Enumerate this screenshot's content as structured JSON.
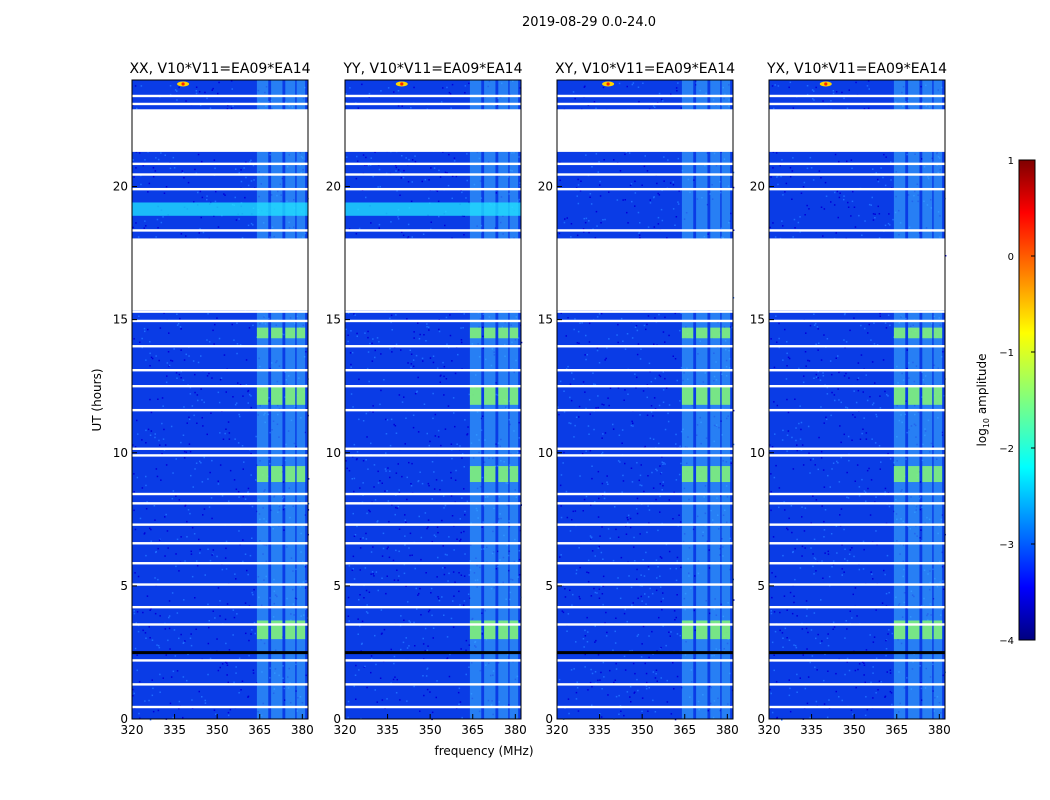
{
  "chart_data": {
    "type": "heatmap",
    "suptitle": "2019-08-29 0.0-24.0",
    "xlabel": "frequency (MHz)",
    "ylabel": "UT (hours)",
    "xlim": [
      320,
      382
    ],
    "ylim": [
      0,
      24
    ],
    "xticks": [
      320,
      335,
      350,
      365,
      380
    ],
    "yticks": [
      0,
      5,
      10,
      15,
      20
    ],
    "colorbar": {
      "label": "log10 amplitude",
      "label_main": "log",
      "label_sub": "10",
      "label_rest": " amplitude",
      "range": [
        -4,
        1
      ],
      "ticks": [
        1,
        0,
        -1,
        -2,
        -3,
        -4
      ],
      "colormap": "jet",
      "colors": [
        "#00007f",
        "#0000ff",
        "#007fff",
        "#00ffff",
        "#7fff7f",
        "#ffff00",
        "#ff7f00",
        "#ff0000",
        "#7f0000"
      ]
    },
    "panels": [
      {
        "title": "XX, V10*V11=EA09*EA14",
        "gaps_ut": [
          [
            21.3,
            22.9
          ],
          [
            18.05,
            15.35
          ]
        ]
      },
      {
        "title": "YY, V10*V11=EA09*EA14",
        "gaps_ut": [
          [
            21.3,
            22.9
          ],
          [
            18.05,
            15.35
          ]
        ]
      },
      {
        "title": "XY, V10*V11=EA09*EA14",
        "gaps_ut": [
          [
            21.3,
            22.9
          ],
          [
            18.05,
            15.35
          ]
        ]
      },
      {
        "title": "YX, V10*V11=EA09*EA14",
        "gaps_ut": [
          [
            21.3,
            22.9
          ],
          [
            18.05,
            15.35
          ]
        ]
      }
    ],
    "rfi_bands_mhz": [
      [
        364,
        368
      ],
      [
        369,
        373
      ],
      [
        374,
        377.5
      ],
      [
        378,
        381
      ]
    ],
    "blank_ut_ranges": [
      [
        15.35,
        18.05
      ],
      [
        21.3,
        22.9
      ]
    ]
  }
}
